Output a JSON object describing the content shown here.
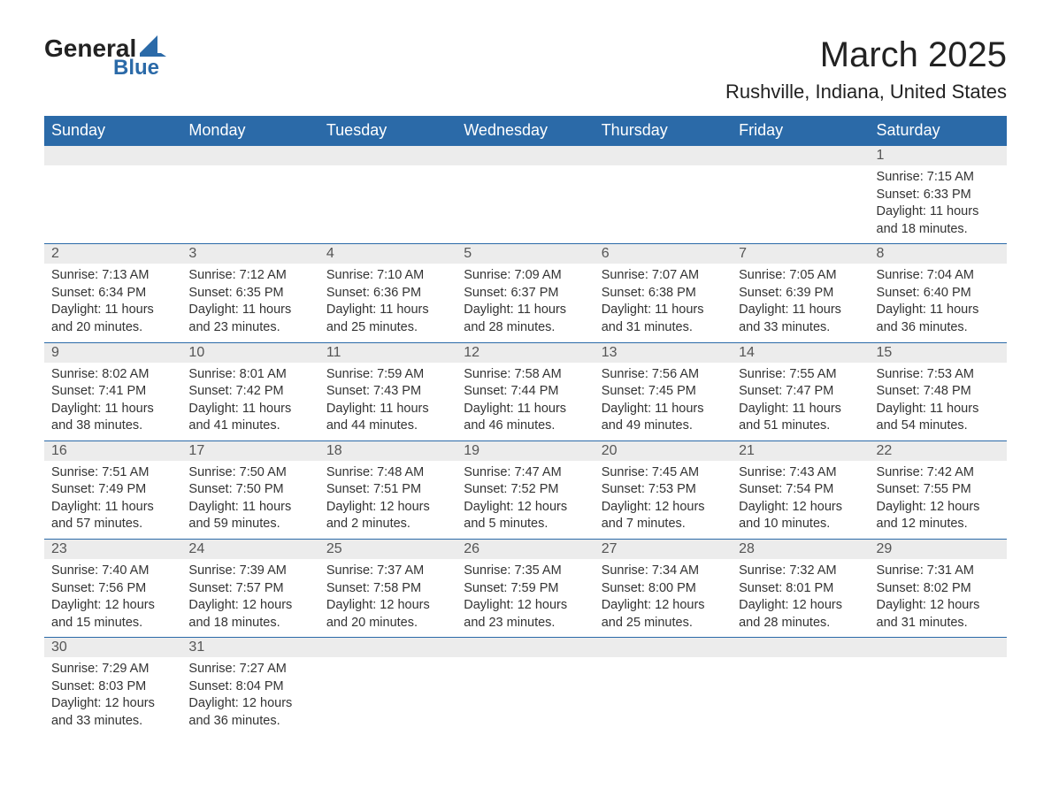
{
  "logo": {
    "line1": "General",
    "line2": "Blue",
    "accent_color": "#2b6aa8"
  },
  "title": "March 2025",
  "location": "Rushville, Indiana, United States",
  "colors": {
    "header_bg": "#2b6aa8",
    "header_text": "#ffffff",
    "daynum_bg": "#ececec",
    "text": "#333333",
    "border": "#2b6aa8"
  },
  "fonts": {
    "title_size": 40,
    "location_size": 22,
    "header_size": 18,
    "body_size": 14.5
  },
  "weekdays": [
    "Sunday",
    "Monday",
    "Tuesday",
    "Wednesday",
    "Thursday",
    "Friday",
    "Saturday"
  ],
  "weeks": [
    [
      null,
      null,
      null,
      null,
      null,
      null,
      {
        "n": "1",
        "sunrise": "7:15 AM",
        "sunset": "6:33 PM",
        "daylight": "11 hours and 18 minutes."
      }
    ],
    [
      {
        "n": "2",
        "sunrise": "7:13 AM",
        "sunset": "6:34 PM",
        "daylight": "11 hours and 20 minutes."
      },
      {
        "n": "3",
        "sunrise": "7:12 AM",
        "sunset": "6:35 PM",
        "daylight": "11 hours and 23 minutes."
      },
      {
        "n": "4",
        "sunrise": "7:10 AM",
        "sunset": "6:36 PM",
        "daylight": "11 hours and 25 minutes."
      },
      {
        "n": "5",
        "sunrise": "7:09 AM",
        "sunset": "6:37 PM",
        "daylight": "11 hours and 28 minutes."
      },
      {
        "n": "6",
        "sunrise": "7:07 AM",
        "sunset": "6:38 PM",
        "daylight": "11 hours and 31 minutes."
      },
      {
        "n": "7",
        "sunrise": "7:05 AM",
        "sunset": "6:39 PM",
        "daylight": "11 hours and 33 minutes."
      },
      {
        "n": "8",
        "sunrise": "7:04 AM",
        "sunset": "6:40 PM",
        "daylight": "11 hours and 36 minutes."
      }
    ],
    [
      {
        "n": "9",
        "sunrise": "8:02 AM",
        "sunset": "7:41 PM",
        "daylight": "11 hours and 38 minutes."
      },
      {
        "n": "10",
        "sunrise": "8:01 AM",
        "sunset": "7:42 PM",
        "daylight": "11 hours and 41 minutes."
      },
      {
        "n": "11",
        "sunrise": "7:59 AM",
        "sunset": "7:43 PM",
        "daylight": "11 hours and 44 minutes."
      },
      {
        "n": "12",
        "sunrise": "7:58 AM",
        "sunset": "7:44 PM",
        "daylight": "11 hours and 46 minutes."
      },
      {
        "n": "13",
        "sunrise": "7:56 AM",
        "sunset": "7:45 PM",
        "daylight": "11 hours and 49 minutes."
      },
      {
        "n": "14",
        "sunrise": "7:55 AM",
        "sunset": "7:47 PM",
        "daylight": "11 hours and 51 minutes."
      },
      {
        "n": "15",
        "sunrise": "7:53 AM",
        "sunset": "7:48 PM",
        "daylight": "11 hours and 54 minutes."
      }
    ],
    [
      {
        "n": "16",
        "sunrise": "7:51 AM",
        "sunset": "7:49 PM",
        "daylight": "11 hours and 57 minutes."
      },
      {
        "n": "17",
        "sunrise": "7:50 AM",
        "sunset": "7:50 PM",
        "daylight": "11 hours and 59 minutes."
      },
      {
        "n": "18",
        "sunrise": "7:48 AM",
        "sunset": "7:51 PM",
        "daylight": "12 hours and 2 minutes."
      },
      {
        "n": "19",
        "sunrise": "7:47 AM",
        "sunset": "7:52 PM",
        "daylight": "12 hours and 5 minutes."
      },
      {
        "n": "20",
        "sunrise": "7:45 AM",
        "sunset": "7:53 PM",
        "daylight": "12 hours and 7 minutes."
      },
      {
        "n": "21",
        "sunrise": "7:43 AM",
        "sunset": "7:54 PM",
        "daylight": "12 hours and 10 minutes."
      },
      {
        "n": "22",
        "sunrise": "7:42 AM",
        "sunset": "7:55 PM",
        "daylight": "12 hours and 12 minutes."
      }
    ],
    [
      {
        "n": "23",
        "sunrise": "7:40 AM",
        "sunset": "7:56 PM",
        "daylight": "12 hours and 15 minutes."
      },
      {
        "n": "24",
        "sunrise": "7:39 AM",
        "sunset": "7:57 PM",
        "daylight": "12 hours and 18 minutes."
      },
      {
        "n": "25",
        "sunrise": "7:37 AM",
        "sunset": "7:58 PM",
        "daylight": "12 hours and 20 minutes."
      },
      {
        "n": "26",
        "sunrise": "7:35 AM",
        "sunset": "7:59 PM",
        "daylight": "12 hours and 23 minutes."
      },
      {
        "n": "27",
        "sunrise": "7:34 AM",
        "sunset": "8:00 PM",
        "daylight": "12 hours and 25 minutes."
      },
      {
        "n": "28",
        "sunrise": "7:32 AM",
        "sunset": "8:01 PM",
        "daylight": "12 hours and 28 minutes."
      },
      {
        "n": "29",
        "sunrise": "7:31 AM",
        "sunset": "8:02 PM",
        "daylight": "12 hours and 31 minutes."
      }
    ],
    [
      {
        "n": "30",
        "sunrise": "7:29 AM",
        "sunset": "8:03 PM",
        "daylight": "12 hours and 33 minutes."
      },
      {
        "n": "31",
        "sunrise": "7:27 AM",
        "sunset": "8:04 PM",
        "daylight": "12 hours and 36 minutes."
      },
      null,
      null,
      null,
      null,
      null
    ]
  ],
  "labels": {
    "sunrise": "Sunrise: ",
    "sunset": "Sunset: ",
    "daylight": "Daylight: "
  }
}
